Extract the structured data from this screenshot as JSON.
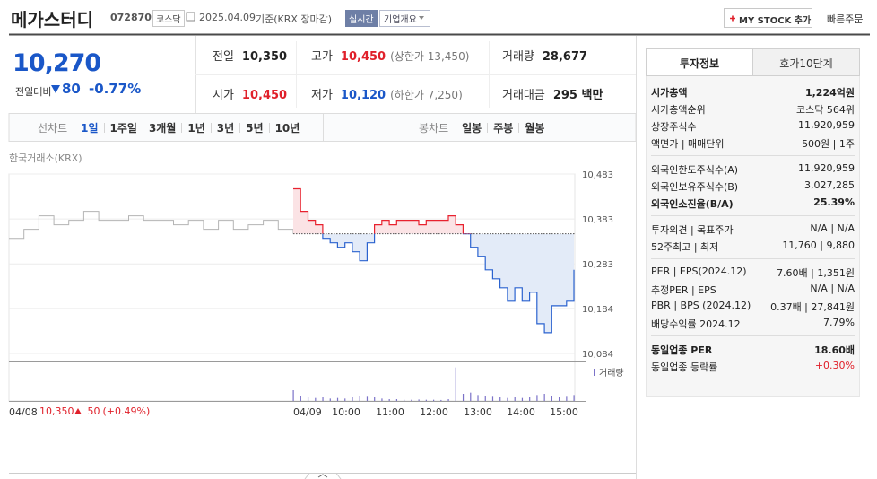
{
  "header": {
    "name": "메가스터디",
    "code": "072870",
    "market": "코스닥",
    "date": "2025.04.09",
    "basis": "기준(KRX 장마감)",
    "realtime": "실시간",
    "company": "기업개요",
    "mystock": "MY STOCK 추가",
    "quick_order": "빠른주문"
  },
  "price": {
    "current": "10,270",
    "change_label": "전일대비",
    "change": "80",
    "change_pct": "-0.77%",
    "color": "#1a57c8"
  },
  "stats": [
    [
      {
        "label": "전일",
        "value": "10,350",
        "color": "#222222"
      },
      {
        "label": "고가",
        "value": "10,450",
        "note": "(상한가 13,450)",
        "color": "#e0202a"
      },
      {
        "label": "거래량",
        "value": "28,677",
        "color": "#222222"
      }
    ],
    [
      {
        "label": "시가",
        "value": "10,450",
        "color": "#e0202a"
      },
      {
        "label": "저가",
        "value": "10,120",
        "note": "(하한가 7,250)",
        "color": "#1a57c8"
      },
      {
        "label": "거래대금",
        "value": "295 백만",
        "color": "#222222"
      }
    ]
  ],
  "periods": {
    "line_label": "선차트",
    "line_tabs": [
      "1일",
      "1주일",
      "3개월",
      "1년",
      "3년",
      "5년",
      "10년"
    ],
    "candle_label": "봉차트",
    "candle_tabs": [
      "일봉",
      "주봉",
      "월봉"
    ]
  },
  "chart": {
    "type": "line",
    "source": "한국거래소(KRX)",
    "ylim": [
      10066,
      10483
    ],
    "yticks": [
      {
        "value": 10483,
        "label": "10,483"
      },
      {
        "value": 10383,
        "label": "10,383"
      },
      {
        "value": 10283,
        "label": "10,283"
      },
      {
        "value": 10184,
        "label": "10,184"
      },
      {
        "value": 10084,
        "label": "10,084"
      }
    ],
    "grid": true,
    "base": 10350,
    "x_labels": [
      "04/08",
      "04/09",
      "10:00",
      "11:00",
      "12:00",
      "13:00",
      "14:00",
      "15:00"
    ],
    "series": [
      {
        "color": "#b4b4b4",
        "values": [
          10340,
          10360,
          10390,
          10370,
          10380,
          10400,
          10380,
          10380,
          10390,
          10380,
          10380,
          10370,
          10380,
          10360,
          10380,
          10360,
          10370,
          10380,
          10360,
          10350
        ]
      },
      {
        "color_up": "#e8222f",
        "color_down": "#2b63cf",
        "fill_up": "#fbe3e5",
        "fill_down": "#e3ebf8",
        "values": [
          10450,
          10400,
          10380,
          10370,
          10340,
          10330,
          10320,
          10330,
          10310,
          10290,
          10330,
          10370,
          10380,
          10370,
          10380,
          10380,
          10380,
          10370,
          10380,
          10380,
          10380,
          10390,
          10370,
          10350,
          10320,
          10300,
          10270,
          10250,
          10230,
          10200,
          10230,
          10200,
          10220,
          10150,
          10130,
          10190,
          10190,
          10200,
          10270
        ]
      }
    ],
    "volume": {
      "name": "거래량",
      "color": "#7b72c8",
      "vlim": [
        0,
        3000
      ],
      "values": [
        900,
        400,
        300,
        250,
        300,
        200,
        250,
        200,
        300,
        400,
        350,
        300,
        200,
        150,
        150,
        100,
        100,
        120,
        100,
        100,
        80,
        150,
        2800,
        600,
        700,
        500,
        400,
        350,
        300,
        250,
        300,
        250,
        300,
        500,
        600,
        400,
        300,
        350,
        500
      ]
    },
    "prev_summary": {
      "close": "10,350",
      "change": "50",
      "change_pct": "(+0.49%)",
      "color": "#e0202a"
    }
  },
  "side": {
    "tabs": [
      "투자정보",
      "호가10단계"
    ],
    "sections": [
      [
        {
          "label": "시가총액",
          "value": "1,224억원",
          "bold": true
        },
        {
          "label": "시가총액순위",
          "value": "코스닥 564위"
        },
        {
          "label": "상장주식수",
          "value": "11,920,959"
        },
        {
          "label": "액면가 | 매매단위",
          "value": "500원 | 1주"
        }
      ],
      [
        {
          "label": "외국인한도주식수(A)",
          "value": "11,920,959"
        },
        {
          "label": "외국인보유주식수(B)",
          "value": "3,027,285"
        },
        {
          "label": "외국인소진율(B/A)",
          "value": "25.39%",
          "bold": true
        }
      ],
      [
        {
          "label": "투자의견 | 목표주가",
          "value": "N/A | N/A"
        },
        {
          "label": "52주최고 | 최저",
          "value": "11,760 | 9,880"
        }
      ],
      [
        {
          "label": "PER | EPS(2024.12)",
          "value": "7.60배 | 1,351원"
        },
        {
          "label": "추정PER | EPS",
          "value": "N/A | N/A"
        },
        {
          "label": "PBR | BPS (2024.12)",
          "value": "0.37배 | 27,841원"
        },
        {
          "label": "배당수익률 2024.12",
          "value": "7.79%"
        }
      ],
      [
        {
          "label": "동일업종 PER",
          "value": "18.60배",
          "bold": true
        },
        {
          "label": "동일업종 등락률",
          "value": "+0.30%",
          "color": "#e0202a"
        }
      ]
    ]
  }
}
